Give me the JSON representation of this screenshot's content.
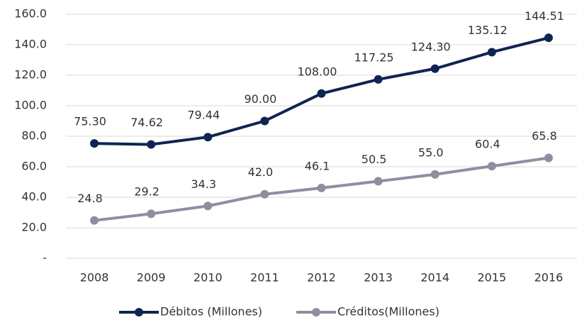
{
  "chart_data": {
    "type": "line",
    "categories": [
      "2008",
      "2009",
      "2010",
      "2011",
      "2012",
      "2013",
      "2014",
      "2015",
      "2016"
    ],
    "series": [
      {
        "name": "Débitos (Millones)",
        "color": "#0f2452",
        "values": [
          75.3,
          74.62,
          79.44,
          90.0,
          108.0,
          117.25,
          124.3,
          135.12,
          144.51
        ],
        "value_labels": [
          "75.30",
          "74.62",
          "79.44",
          "90.00",
          "108.00",
          "117.25",
          "124.30",
          "135.12",
          "144.51"
        ]
      },
      {
        "name": "Créditos(Millones)",
        "color": "#8c8fa0",
        "values": [
          24.8,
          29.2,
          34.3,
          42.0,
          46.1,
          50.5,
          55.0,
          60.4,
          65.8
        ],
        "value_labels": [
          "24.8",
          "29.2",
          "34.3",
          "42.0",
          "46.1",
          "50.5",
          "55.0",
          "60.4",
          "65.8"
        ]
      }
    ],
    "ylim": [
      0,
      160
    ],
    "yticks": [
      {
        "value": 0,
        "label": "-"
      },
      {
        "value": 20,
        "label": "20.0"
      },
      {
        "value": 40,
        "label": "40.0"
      },
      {
        "value": 60,
        "label": "60.0"
      },
      {
        "value": 80,
        "label": "80.0"
      },
      {
        "value": 100,
        "label": "100.0"
      },
      {
        "value": 120,
        "label": "120.0"
      },
      {
        "value": 140,
        "label": "140.0"
      },
      {
        "value": 160,
        "label": "160.0"
      }
    ],
    "grid": true,
    "legend": "bottom"
  }
}
